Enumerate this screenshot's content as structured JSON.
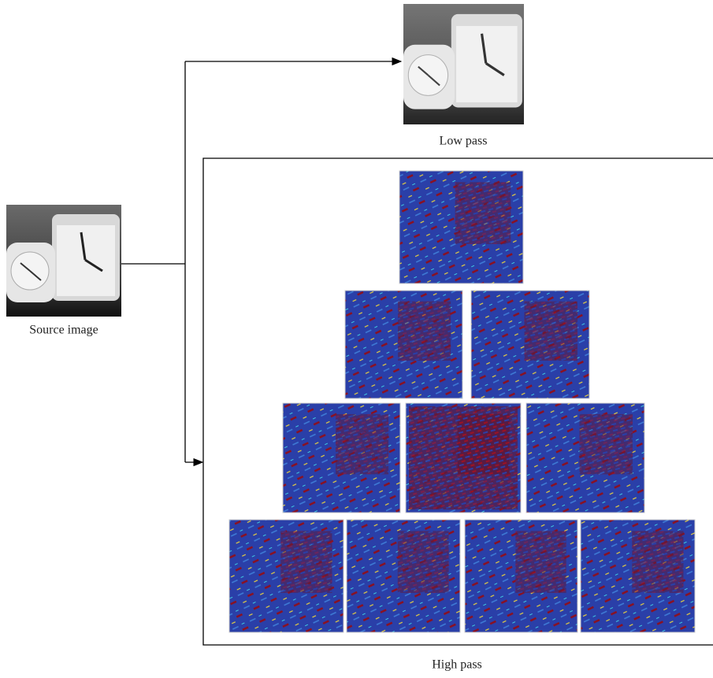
{
  "source": {
    "label": "Source image"
  },
  "low_pass": {
    "label": "Low pass"
  },
  "high_pass": {
    "label": "High pass"
  }
}
